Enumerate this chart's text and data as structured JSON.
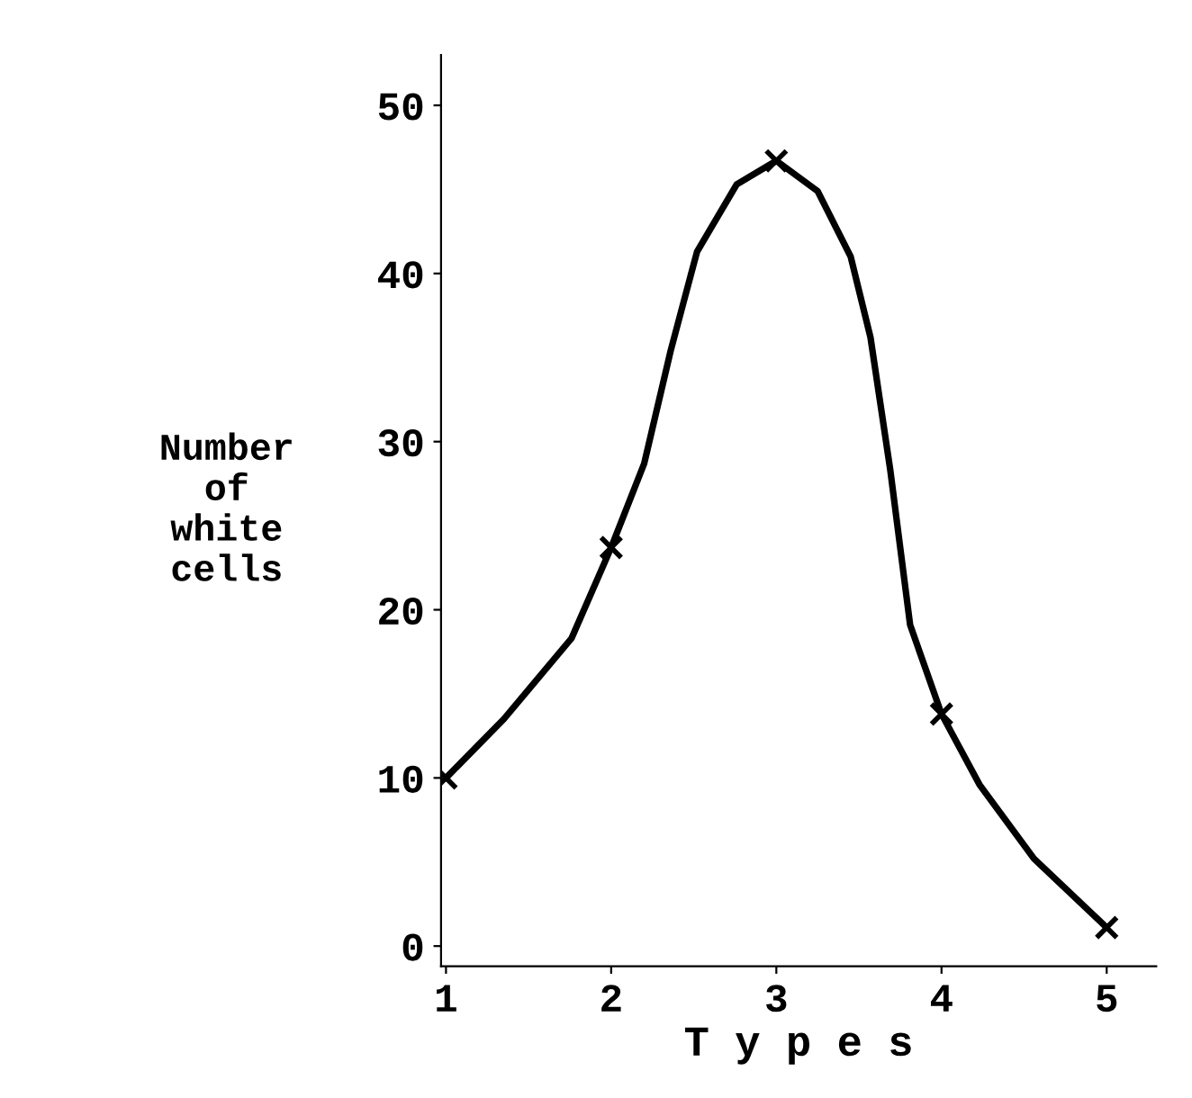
{
  "chart_data": {
    "type": "line",
    "xlabel": "T y p e s",
    "ylabel": "Number\nof\nwhite\ncells",
    "series": [
      {
        "color": "#000000",
        "marker": "none",
        "x": [
          1,
          1.35,
          1.76,
          2,
          2.2,
          2.36,
          2.52,
          2.76,
          3,
          3.25,
          3.45,
          3.57,
          3.69,
          3.81,
          4,
          4.23,
          4.56,
          5
        ],
        "values": [
          10,
          13.5,
          18.3,
          23.7,
          28.7,
          35.4,
          41.3,
          45.3,
          46.7,
          44.9,
          41,
          36.2,
          28.3,
          19.1,
          13.8,
          9.6,
          5.2,
          1.1
        ]
      },
      {
        "type": "scatter",
        "color": "#000000",
        "marker": "cross",
        "x": [
          1,
          2,
          3,
          4,
          5
        ],
        "values": [
          10,
          23.7,
          46.7,
          13.8,
          1.1
        ]
      }
    ],
    "xlim": [
      0.97,
      5.3
    ],
    "ylim": [
      -1.2,
      53
    ],
    "xticks": [
      1,
      2,
      3,
      4,
      5
    ],
    "yticks": [
      0,
      10,
      20,
      30,
      40,
      50
    ],
    "line_style": "solid",
    "grid": false
  }
}
